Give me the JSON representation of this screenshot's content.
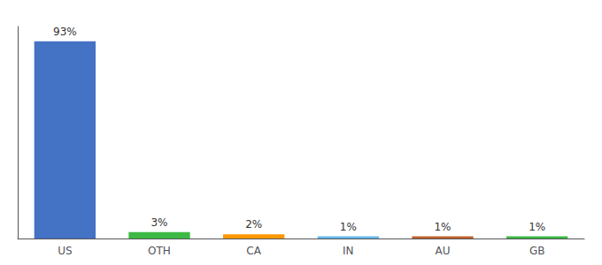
{
  "chart_data": {
    "type": "bar",
    "categories": [
      "US",
      "OTH",
      "CA",
      "IN",
      "AU",
      "GB"
    ],
    "values": [
      93,
      3,
      2,
      1,
      1,
      1
    ],
    "value_labels": [
      "93%",
      "3%",
      "2%",
      "1%",
      "1%",
      "1%"
    ],
    "data_labels": true,
    "colors": [
      "#4472C4",
      "#3CB944",
      "#FF9800",
      "#64B8E8",
      "#C0622A",
      "#3CB944"
    ],
    "ylim": [
      0,
      100
    ],
    "yticks": [],
    "grid": false,
    "tick_labels": "x"
  }
}
